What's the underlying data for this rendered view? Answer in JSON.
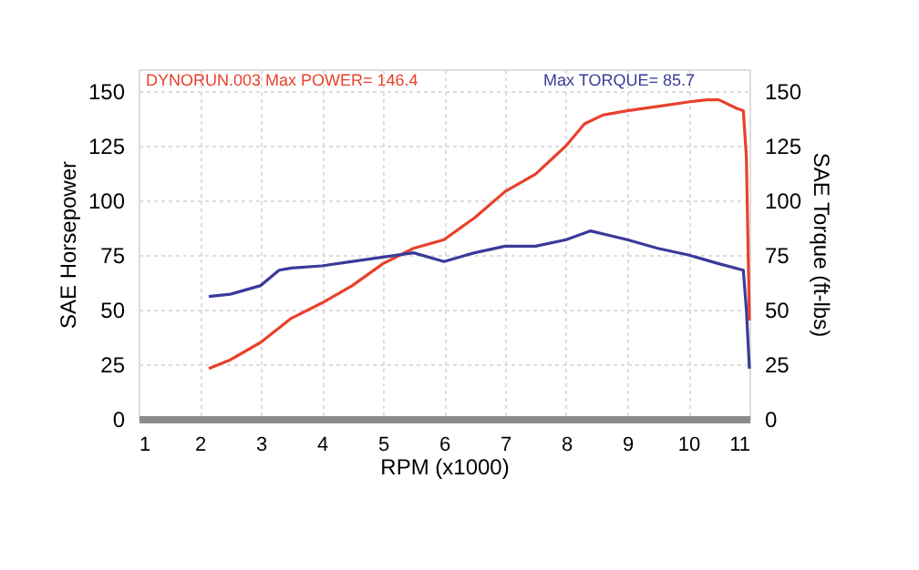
{
  "chart_data": {
    "type": "line",
    "xlabel": "RPM (x1000)",
    "ylabel": "SAE Horsepower",
    "y2label": "SAE Torque (ft-lbs)",
    "annotations": [
      "DYNORUN.003  Max POWER= 146.4",
      "Max TORQUE= 85.7"
    ],
    "xlim": [
      1,
      11
    ],
    "xticks": [
      1,
      2,
      3,
      4,
      5,
      6,
      7,
      8,
      9,
      10,
      11
    ],
    "ylim": [
      0,
      160
    ],
    "yticks": [
      0,
      25,
      50,
      75,
      100,
      125,
      150
    ],
    "y2lim": [
      0,
      160
    ],
    "y2ticks": [
      0,
      25,
      50,
      75,
      100,
      125,
      150
    ],
    "grid": true,
    "marker": "none",
    "line_style": "solid",
    "series": [
      {
        "color": "#e8412c",
        "x": [
          2.15,
          2.5,
          3,
          3.5,
          4,
          4.5,
          5,
          5.5,
          6,
          6.5,
          7,
          7.5,
          8,
          8.3,
          8.6,
          9,
          9.5,
          10,
          10.3,
          10.5,
          10.8,
          10.9,
          10.95,
          11
        ],
        "values": [
          23,
          27,
          35,
          46,
          53,
          61,
          71,
          78,
          82,
          92,
          104,
          112,
          125,
          135,
          139,
          141,
          143,
          145,
          146,
          146,
          142,
          141,
          120,
          45
        ]
      },
      {
        "color": "#3a3a9a",
        "axis": "y2",
        "x": [
          2.15,
          2.5,
          3,
          3.3,
          3.5,
          4,
          4.5,
          5,
          5.5,
          6,
          6.5,
          7,
          7.5,
          8,
          8.4,
          9,
          9.5,
          10,
          10.5,
          10.9,
          10.95,
          11
        ],
        "values": [
          56,
          57,
          61,
          68,
          69,
          70,
          72,
          74,
          76,
          72,
          76,
          79,
          79,
          82,
          86,
          82,
          78,
          75,
          71,
          68,
          50,
          23
        ]
      }
    ]
  }
}
